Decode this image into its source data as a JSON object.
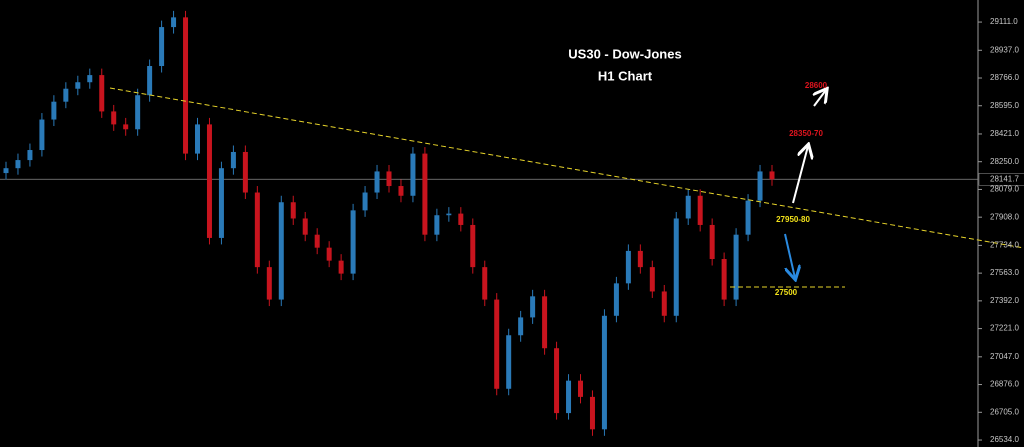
{
  "chart_data": {
    "type": "candlestick",
    "title": "US30 - Dow-Jones",
    "subtitle": "H1 Chart",
    "up_color": "#2a7ab8",
    "down_color": "#c8141e",
    "open": [
      28180,
      28210,
      28260,
      28322,
      28510,
      28620,
      28700,
      28740,
      28784,
      28560,
      28480,
      28450,
      28660,
      28840,
      29080,
      29140,
      28300,
      28480,
      27780,
      28210,
      28310,
      28060,
      27600,
      27400,
      28000,
      27900,
      27800,
      27720,
      27640,
      27560,
      27950,
      28060,
      28190,
      28100,
      28040,
      28300,
      27800,
      27920,
      27930,
      27860,
      27600,
      27400,
      26850,
      27180,
      27290,
      27420,
      27100,
      26700,
      26900,
      26800,
      26600,
      27300,
      27500,
      27700,
      27600,
      27450,
      27300,
      27900,
      28040,
      27860,
      27650,
      27400,
      27800,
      28010,
      28190
    ],
    "high": [
      28250,
      28300,
      28362,
      28550,
      28660,
      28740,
      28780,
      28824,
      28824,
      28600,
      28520,
      28700,
      28880,
      29120,
      29180,
      29180,
      28520,
      28520,
      28250,
      28350,
      28350,
      28100,
      27640,
      28040,
      28040,
      27940,
      27840,
      27760,
      27680,
      27990,
      28100,
      28230,
      28230,
      28140,
      28340,
      28340,
      27960,
      27970,
      27970,
      27900,
      27640,
      27440,
      27220,
      27330,
      27460,
      27460,
      27140,
      26940,
      26940,
      26840,
      27340,
      27540,
      27740,
      27740,
      27640,
      27490,
      27940,
      28080,
      28080,
      27900,
      27690,
      27840,
      28050,
      28230,
      28230
    ],
    "low": [
      28140,
      28170,
      28220,
      28282,
      28470,
      28580,
      28660,
      28700,
      28520,
      28440,
      28410,
      28410,
      28620,
      28800,
      29040,
      28260,
      28260,
      27740,
      27740,
      28170,
      28020,
      27560,
      27360,
      27360,
      27860,
      27760,
      27680,
      27600,
      27520,
      27520,
      27910,
      28020,
      28060,
      28000,
      28000,
      27760,
      27760,
      27880,
      27820,
      27560,
      27360,
      26810,
      26810,
      27140,
      27250,
      27060,
      26660,
      26660,
      26760,
      26560,
      26560,
      27260,
      27460,
      27560,
      27410,
      27260,
      27260,
      27860,
      27820,
      27610,
      27360,
      27360,
      27760,
      27970,
      28102
    ],
    "close": [
      28210,
      28260,
      28322,
      28510,
      28620,
      28700,
      28740,
      28784,
      28560,
      28480,
      28450,
      28660,
      28840,
      29080,
      29140,
      28300,
      28480,
      27780,
      28210,
      28310,
      28060,
      27600,
      27400,
      28000,
      27900,
      27800,
      27720,
      27640,
      27560,
      27950,
      28060,
      28190,
      28100,
      28040,
      28300,
      27800,
      27920,
      27930,
      27860,
      27600,
      27400,
      26850,
      27180,
      27290,
      27420,
      27100,
      26700,
      26900,
      26800,
      26600,
      27300,
      27500,
      27700,
      27600,
      27450,
      27300,
      27900,
      28040,
      27860,
      27650,
      27400,
      27800,
      28010,
      28190,
      28142
    ],
    "current_price": 28141.7,
    "ylim": [
      26491,
      29247
    ],
    "yticks": [
      {
        "value": 29111,
        "label": "29111.0"
      },
      {
        "value": 28937,
        "label": "28937.0"
      },
      {
        "value": 28766,
        "label": "28766.0"
      },
      {
        "value": 28595,
        "label": "28595.0"
      },
      {
        "value": 28421,
        "label": "28421.0"
      },
      {
        "value": 28250,
        "label": "28250.0"
      },
      {
        "value": 28079,
        "label": "28079.0"
      },
      {
        "value": 27908,
        "label": "27908.0"
      },
      {
        "value": 27734,
        "label": "27734.0"
      },
      {
        "value": 27563,
        "label": "27563.0"
      },
      {
        "value": 27392,
        "label": "27392.0"
      },
      {
        "value": 27221,
        "label": "27221.0"
      },
      {
        "value": 27047,
        "label": "27047.0"
      },
      {
        "value": 26876,
        "label": "26876.0"
      },
      {
        "value": 26705,
        "label": "26705.0"
      },
      {
        "value": 26534,
        "label": "26534.0"
      }
    ],
    "annotations": [
      "28600",
      "28350-70",
      "27950-80",
      "27500"
    ]
  }
}
